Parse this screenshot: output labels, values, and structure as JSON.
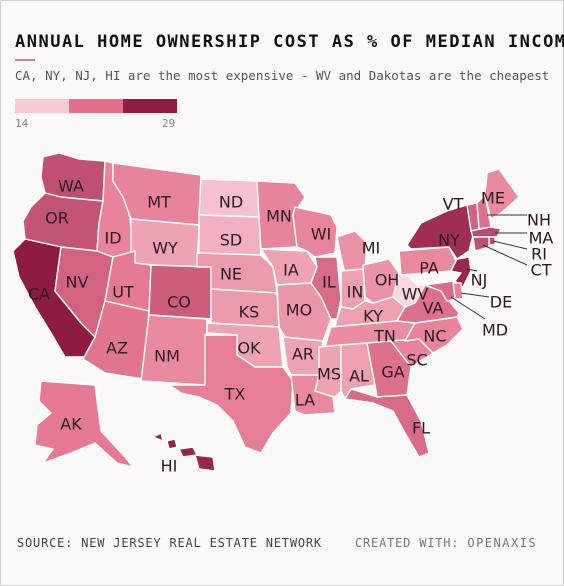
{
  "header": {
    "title": "ANNUAL HOME OWNERSHIP COST AS % OF MEDIAN INCOME",
    "subtitle": "CA, NY, NJ, HI are the most expensive - WV and Dakotas are the cheapest"
  },
  "legend": {
    "min_label": "14",
    "max_label": "29",
    "colors": [
      "#f7c9d4",
      "#e56f8b",
      "#8f1d45"
    ]
  },
  "map_data": {
    "scale_min": 14,
    "scale_max": 29,
    "states": [
      {
        "code": "WA",
        "label": "WA",
        "level": 0.72
      },
      {
        "code": "OR",
        "label": "OR",
        "level": 0.7
      },
      {
        "code": "CA",
        "label": "CA",
        "level": 1.0
      },
      {
        "code": "NV",
        "label": "NV",
        "level": 0.62
      },
      {
        "code": "ID",
        "label": "ID",
        "level": 0.45
      },
      {
        "code": "MT",
        "label": "MT",
        "level": 0.45
      },
      {
        "code": "WY",
        "label": "WY",
        "level": 0.28
      },
      {
        "code": "UT",
        "label": "UT",
        "level": 0.5
      },
      {
        "code": "AZ",
        "label": "AZ",
        "level": 0.52
      },
      {
        "code": "CO",
        "label": "CO",
        "level": 0.65
      },
      {
        "code": "NM",
        "label": "NM",
        "level": 0.42
      },
      {
        "code": "ND",
        "label": "ND",
        "level": 0.12
      },
      {
        "code": "SD",
        "label": "SD",
        "level": 0.22
      },
      {
        "code": "NE",
        "label": "NE",
        "level": 0.33
      },
      {
        "code": "KS",
        "label": "KS",
        "level": 0.33
      },
      {
        "code": "OK",
        "label": "OK",
        "level": 0.28
      },
      {
        "code": "TX",
        "label": "TX",
        "level": 0.48
      },
      {
        "code": "MN",
        "label": "MN",
        "level": 0.45
      },
      {
        "code": "IA",
        "label": "IA",
        "level": 0.28
      },
      {
        "code": "MO",
        "label": "MO",
        "level": 0.35
      },
      {
        "code": "AR",
        "label": "AR",
        "level": 0.28
      },
      {
        "code": "LA",
        "label": "LA",
        "level": 0.42
      },
      {
        "code": "WI",
        "label": "WI",
        "level": 0.44
      },
      {
        "code": "IL",
        "label": "IL",
        "level": 0.58
      },
      {
        "code": "MI",
        "label": "MI",
        "level": 0.38
      },
      {
        "code": "IN",
        "label": "IN",
        "level": 0.3
      },
      {
        "code": "OH",
        "label": "OH",
        "level": 0.36
      },
      {
        "code": "KY",
        "label": "KY",
        "level": 0.3
      },
      {
        "code": "TN",
        "label": "TN",
        "level": 0.4
      },
      {
        "code": "MS",
        "label": "MS",
        "level": 0.28
      },
      {
        "code": "AL",
        "label": "AL",
        "level": 0.3
      },
      {
        "code": "GA",
        "label": "GA",
        "level": 0.55
      },
      {
        "code": "FL",
        "label": "FL",
        "level": 0.58
      },
      {
        "code": "SC",
        "label": "SC",
        "level": 0.45
      },
      {
        "code": "NC",
        "label": "NC",
        "level": 0.45
      },
      {
        "code": "VA",
        "label": "VA",
        "level": 0.55
      },
      {
        "code": "WV",
        "label": "WV",
        "level": 0.0
      },
      {
        "code": "PA",
        "label": "PA",
        "level": 0.42
      },
      {
        "code": "NY",
        "label": "NY",
        "level": 0.9
      },
      {
        "code": "VT",
        "label": "VT",
        "level": 0.62
      },
      {
        "code": "NH",
        "label": "NH",
        "level": 0.55
      },
      {
        "code": "ME",
        "label": "ME",
        "level": 0.42
      },
      {
        "code": "MA",
        "label": "MA",
        "level": 0.75
      },
      {
        "code": "RI",
        "label": "RI",
        "level": 0.72
      },
      {
        "code": "CT",
        "label": "CT",
        "level": 0.72
      },
      {
        "code": "NJ",
        "label": "NJ",
        "level": 0.95
      },
      {
        "code": "DE",
        "label": "DE",
        "level": 0.48
      },
      {
        "code": "MD",
        "label": "MD",
        "level": 0.58
      },
      {
        "code": "AK",
        "label": "AK",
        "level": 0.5
      },
      {
        "code": "HI",
        "label": "HI",
        "level": 0.95
      }
    ]
  },
  "footer": {
    "source": "SOURCE: NEW JERSEY REAL ESTATE NETWORK",
    "credit_prefix": "CREATED WITH:",
    "credit_brand": "OPENAXIS"
  }
}
